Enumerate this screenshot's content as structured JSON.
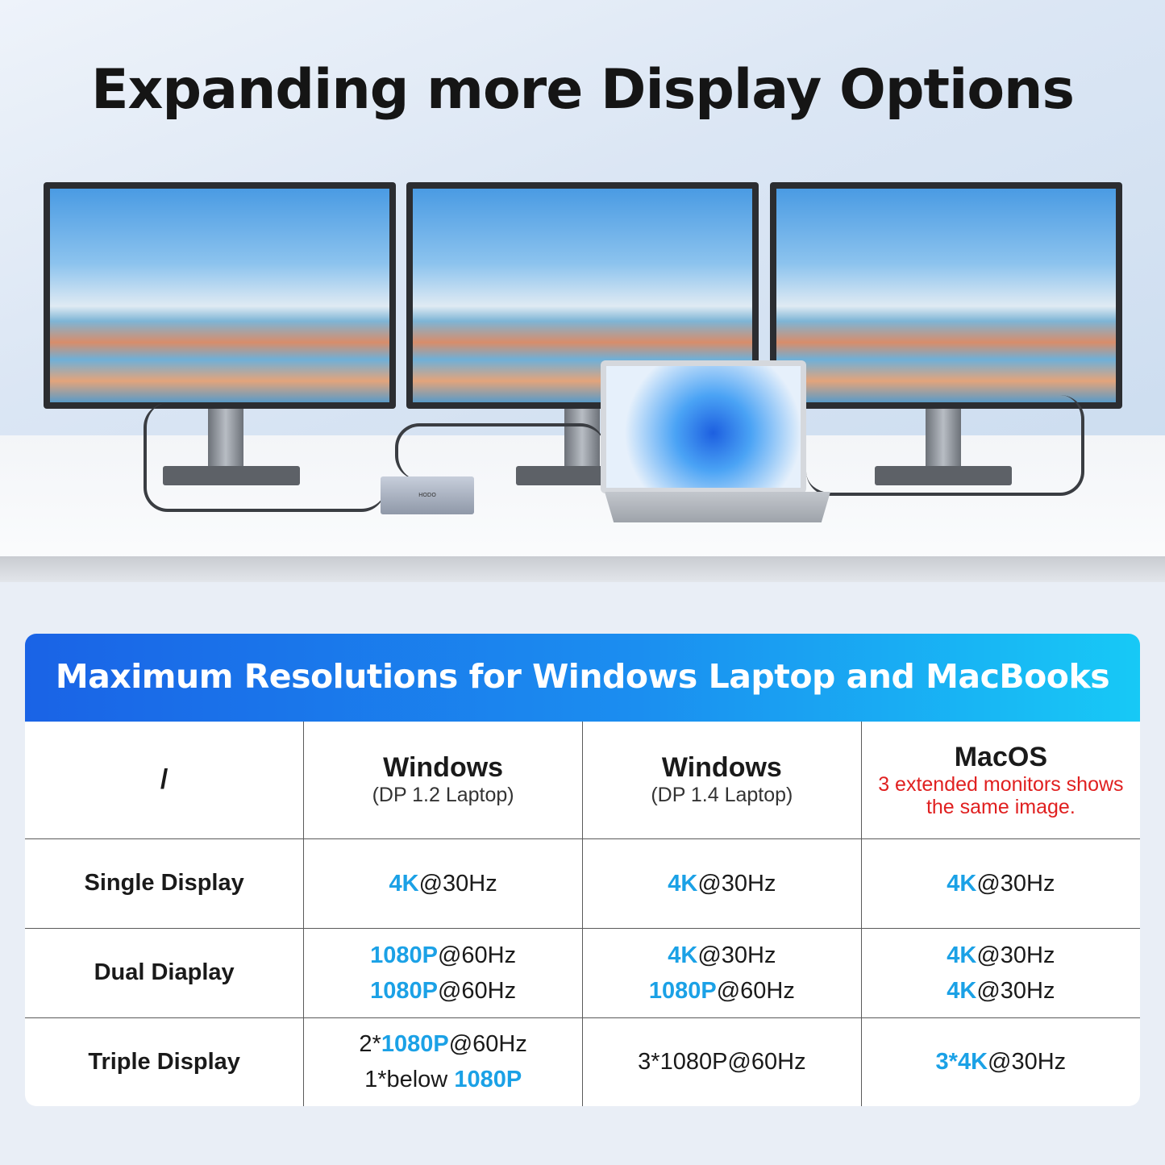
{
  "title": "Expanding more Display Options",
  "hub_logo": "HODO",
  "table": {
    "banner": "Maximum Resolutions for Windows Laptop and MacBooks",
    "columns": [
      {
        "title": "/",
        "sub": "",
        "note": ""
      },
      {
        "title": "Windows",
        "sub": "(DP 1.2 Laptop)",
        "note": ""
      },
      {
        "title": "Windows",
        "sub": "(DP 1.4 Laptop)",
        "note": ""
      },
      {
        "title": "MacOS",
        "sub": "",
        "note": "3 extended monitors shows the same image."
      }
    ],
    "highlight_color": "#1ba1e6",
    "note_color": "#e02020",
    "rows": [
      {
        "label": "Single Display",
        "cells": [
          [
            [
              {
                "t": "4K",
                "hl": true
              },
              {
                "t": "@30Hz"
              }
            ]
          ],
          [
            [
              {
                "t": "4K",
                "hl": true
              },
              {
                "t": "@30Hz"
              }
            ]
          ],
          [
            [
              {
                "t": "4K",
                "hl": true
              },
              {
                "t": "@30Hz"
              }
            ]
          ]
        ]
      },
      {
        "label": "Dual Diaplay",
        "cells": [
          [
            [
              {
                "t": "1080P",
                "hl": true
              },
              {
                "t": "@60Hz"
              }
            ],
            [
              {
                "t": "1080P",
                "hl": true
              },
              {
                "t": "@60Hz"
              }
            ]
          ],
          [
            [
              {
                "t": "4K",
                "hl": true
              },
              {
                "t": "@30Hz"
              }
            ],
            [
              {
                "t": "1080P",
                "hl": true
              },
              {
                "t": "@60Hz"
              }
            ]
          ],
          [
            [
              {
                "t": "4K",
                "hl": true
              },
              {
                "t": "@30Hz"
              }
            ],
            [
              {
                "t": "4K",
                "hl": true
              },
              {
                "t": "@30Hz"
              }
            ]
          ]
        ]
      },
      {
        "label": "Triple Display",
        "cells": [
          [
            [
              {
                "t": "2*"
              },
              {
                "t": "1080P",
                "hl": true
              },
              {
                "t": "@60Hz"
              }
            ],
            [
              {
                "t": "1*below "
              },
              {
                "t": "1080P",
                "hl": true
              }
            ]
          ],
          [
            [
              {
                "t": "3*1080P@60Hz"
              }
            ]
          ],
          [
            [
              {
                "t": "3*4K",
                "hl": true
              },
              {
                "t": "@30Hz"
              }
            ]
          ]
        ]
      }
    ]
  }
}
